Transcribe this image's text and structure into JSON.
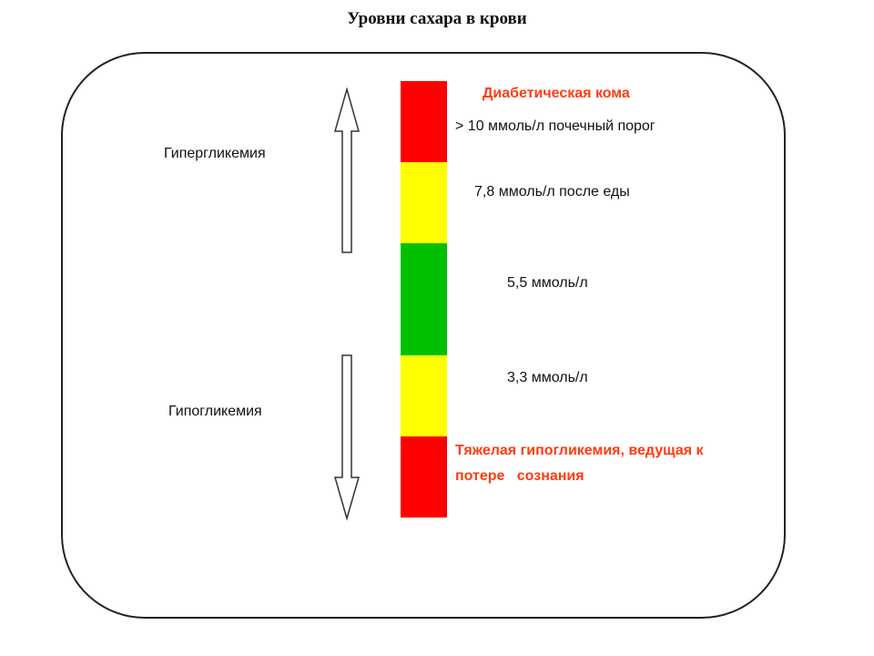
{
  "title": "Уровни сахара в крови",
  "zones": {
    "hyperglycemia_label": "Гипергликемия",
    "hypoglycemia_label": "Гипогликемия"
  },
  "scale": {
    "segments": [
      {
        "color": "#ff0000",
        "name": "red"
      },
      {
        "color": "#ffff00",
        "name": "yellow"
      },
      {
        "color": "#00c000",
        "name": "green"
      },
      {
        "color": "#ffff00",
        "name": "yellow"
      },
      {
        "color": "#ff0000",
        "name": "red"
      }
    ]
  },
  "levels": {
    "coma": "Диабетическая кома",
    "renal_threshold": "> 10 ммоль/л почечный порог",
    "after_meal": "7,8 ммоль/л после еды",
    "normal": "5,5 ммоль/л",
    "low": "3,3 ммоль/л",
    "severe_hypo_line1": "Тяжелая гипогликемия, ведущая к",
    "severe_hypo_line2": "потере   сознания"
  },
  "colors": {
    "warning_text": "#ff3b10",
    "border": "#222222"
  },
  "icons": {
    "up": "arrow-up-icon",
    "down": "arrow-down-icon"
  }
}
